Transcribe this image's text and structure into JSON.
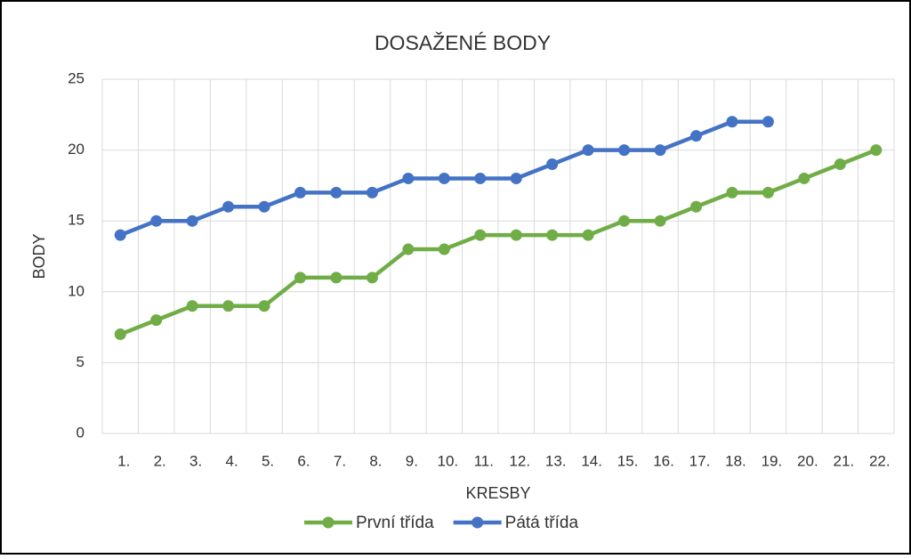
{
  "chart_data": {
    "type": "line",
    "title": "DOSAŽENÉ BODY",
    "x_label": "KRESBY",
    "y_label": "BODY",
    "categories": [
      "1.",
      "2.",
      "3.",
      "4.",
      "5.",
      "6.",
      "7.",
      "8.",
      "9.",
      "10.",
      "11.",
      "12.",
      "13.",
      "14.",
      "15.",
      "16.",
      "17.",
      "18.",
      "19.",
      "20.",
      "21.",
      "22."
    ],
    "series": [
      {
        "name": "První třída",
        "color": "#70ad47",
        "values": [
          7,
          8,
          9,
          9,
          9,
          11,
          11,
          11,
          13,
          13,
          14,
          14,
          14,
          14,
          15,
          15,
          16,
          17,
          17,
          18,
          19,
          20
        ]
      },
      {
        "name": "Pátá třída",
        "color": "#4472c4",
        "values": [
          14,
          15,
          15,
          16,
          16,
          17,
          17,
          17,
          18,
          18,
          18,
          18,
          19,
          20,
          20,
          20,
          21,
          22,
          22,
          null,
          null,
          null
        ]
      }
    ],
    "ylim": [
      0,
      25
    ],
    "yticks": [
      0,
      5,
      10,
      15,
      20,
      25
    ],
    "grid": true,
    "legend": "bottom"
  }
}
